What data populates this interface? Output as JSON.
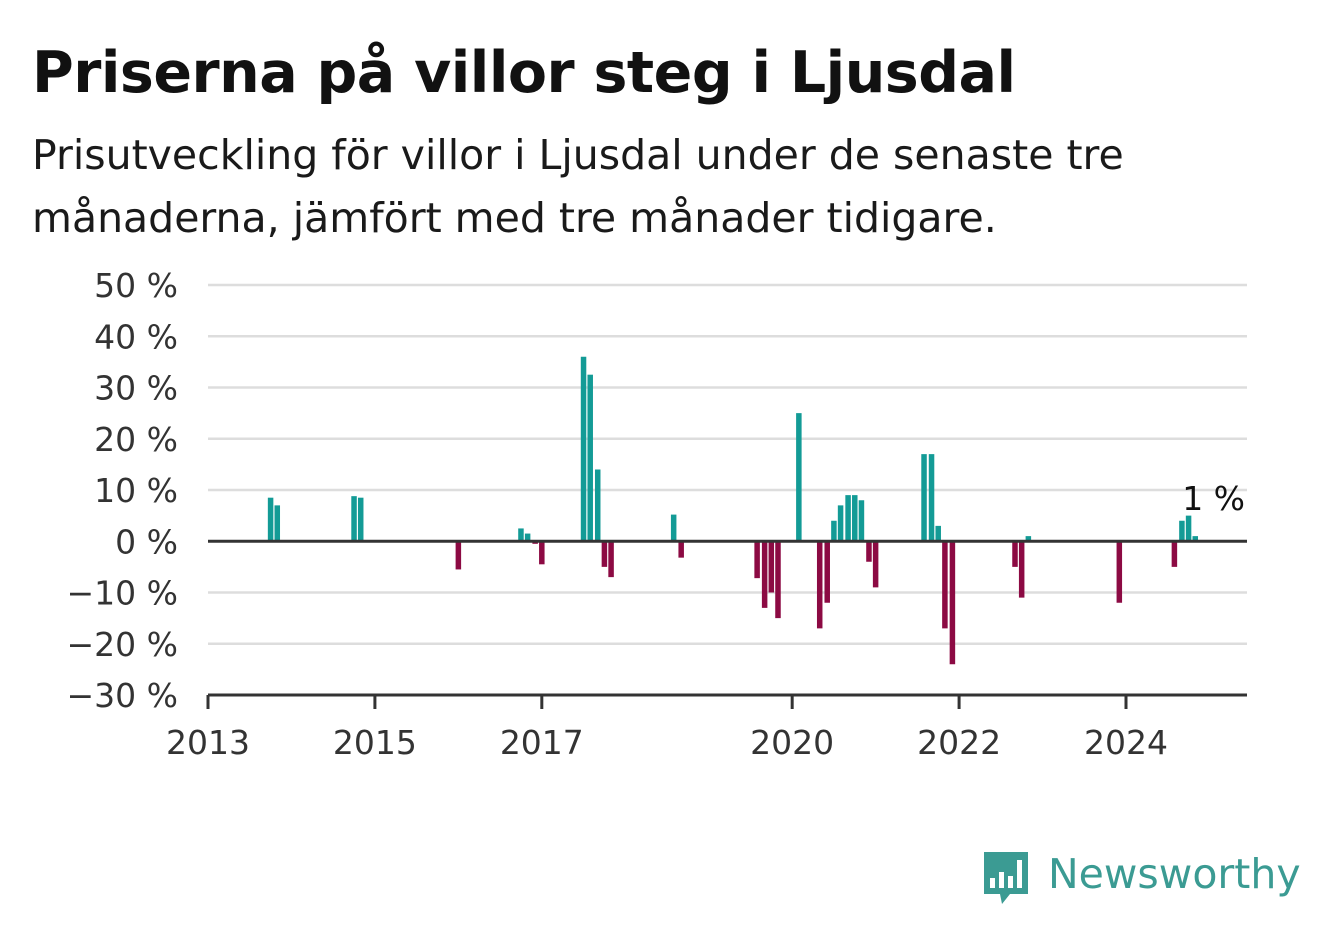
{
  "title": "Priserna på villor steg i Ljusdal",
  "subtitle": "Prisutveckling för villor i Ljusdal under de senaste tre månaderna, jämfört med tre månader tidigare.",
  "brand": {
    "name": "Newsworthy",
    "color": "#3b9b93",
    "icon": "newsworthy-chart-bubble-icon"
  },
  "chart_data": {
    "type": "bar",
    "y_tick_labels": [
      "50 %",
      "40 %",
      "30 %",
      "20 %",
      "10 %",
      "0 %",
      "−10 %",
      "−20 %",
      "−30 %"
    ],
    "y_ticks": [
      50,
      40,
      30,
      20,
      10,
      0,
      -10,
      -20,
      -30
    ],
    "ylim": [
      -30,
      50
    ],
    "x_tick_labels": [
      "2013",
      "2015",
      "2017",
      "2020",
      "2022",
      "2024"
    ],
    "x_ticks": [
      2013,
      2015,
      2017,
      2020,
      2022,
      2024
    ],
    "xlim": [
      2013,
      2025.45
    ],
    "grid": true,
    "colors": {
      "positive": "#139b96",
      "negative": "#8c0a43",
      "grid": "#dddddd",
      "axis": "#333333"
    },
    "annotation": {
      "text": "1 %",
      "x": 2025.05,
      "y": 1
    },
    "values": [
      {
        "x": 2013.75,
        "y": 8.5
      },
      {
        "x": 2013.83,
        "y": 7
      },
      {
        "x": 2014.75,
        "y": 8.8
      },
      {
        "x": 2014.83,
        "y": 8.5
      },
      {
        "x": 2016.0,
        "y": -5.5
      },
      {
        "x": 2016.75,
        "y": 2.5
      },
      {
        "x": 2016.83,
        "y": 1.5
      },
      {
        "x": 2016.92,
        "y": -0.5
      },
      {
        "x": 2017.0,
        "y": -4.5
      },
      {
        "x": 2017.5,
        "y": 36
      },
      {
        "x": 2017.58,
        "y": 32.5
      },
      {
        "x": 2017.67,
        "y": 14
      },
      {
        "x": 2017.75,
        "y": -5
      },
      {
        "x": 2017.83,
        "y": -7
      },
      {
        "x": 2018.58,
        "y": 5.2
      },
      {
        "x": 2018.67,
        "y": -3.2
      },
      {
        "x": 2019.58,
        "y": -7.2
      },
      {
        "x": 2019.67,
        "y": -13
      },
      {
        "x": 2019.75,
        "y": -10
      },
      {
        "x": 2019.83,
        "y": -15
      },
      {
        "x": 2020.08,
        "y": 25
      },
      {
        "x": 2020.33,
        "y": -17
      },
      {
        "x": 2020.42,
        "y": -12
      },
      {
        "x": 2020.5,
        "y": 4
      },
      {
        "x": 2020.58,
        "y": 7
      },
      {
        "x": 2020.67,
        "y": 9
      },
      {
        "x": 2020.75,
        "y": 9
      },
      {
        "x": 2020.83,
        "y": 8
      },
      {
        "x": 2020.92,
        "y": -4
      },
      {
        "x": 2021.0,
        "y": -9
      },
      {
        "x": 2021.58,
        "y": 17
      },
      {
        "x": 2021.67,
        "y": 17
      },
      {
        "x": 2021.75,
        "y": 3
      },
      {
        "x": 2021.83,
        "y": -17
      },
      {
        "x": 2021.92,
        "y": -24
      },
      {
        "x": 2022.67,
        "y": -5
      },
      {
        "x": 2022.75,
        "y": -11
      },
      {
        "x": 2022.83,
        "y": 1
      },
      {
        "x": 2023.92,
        "y": -12
      },
      {
        "x": 2024.58,
        "y": -5
      },
      {
        "x": 2024.67,
        "y": 4
      },
      {
        "x": 2024.75,
        "y": 5
      },
      {
        "x": 2024.83,
        "y": 1
      }
    ]
  }
}
